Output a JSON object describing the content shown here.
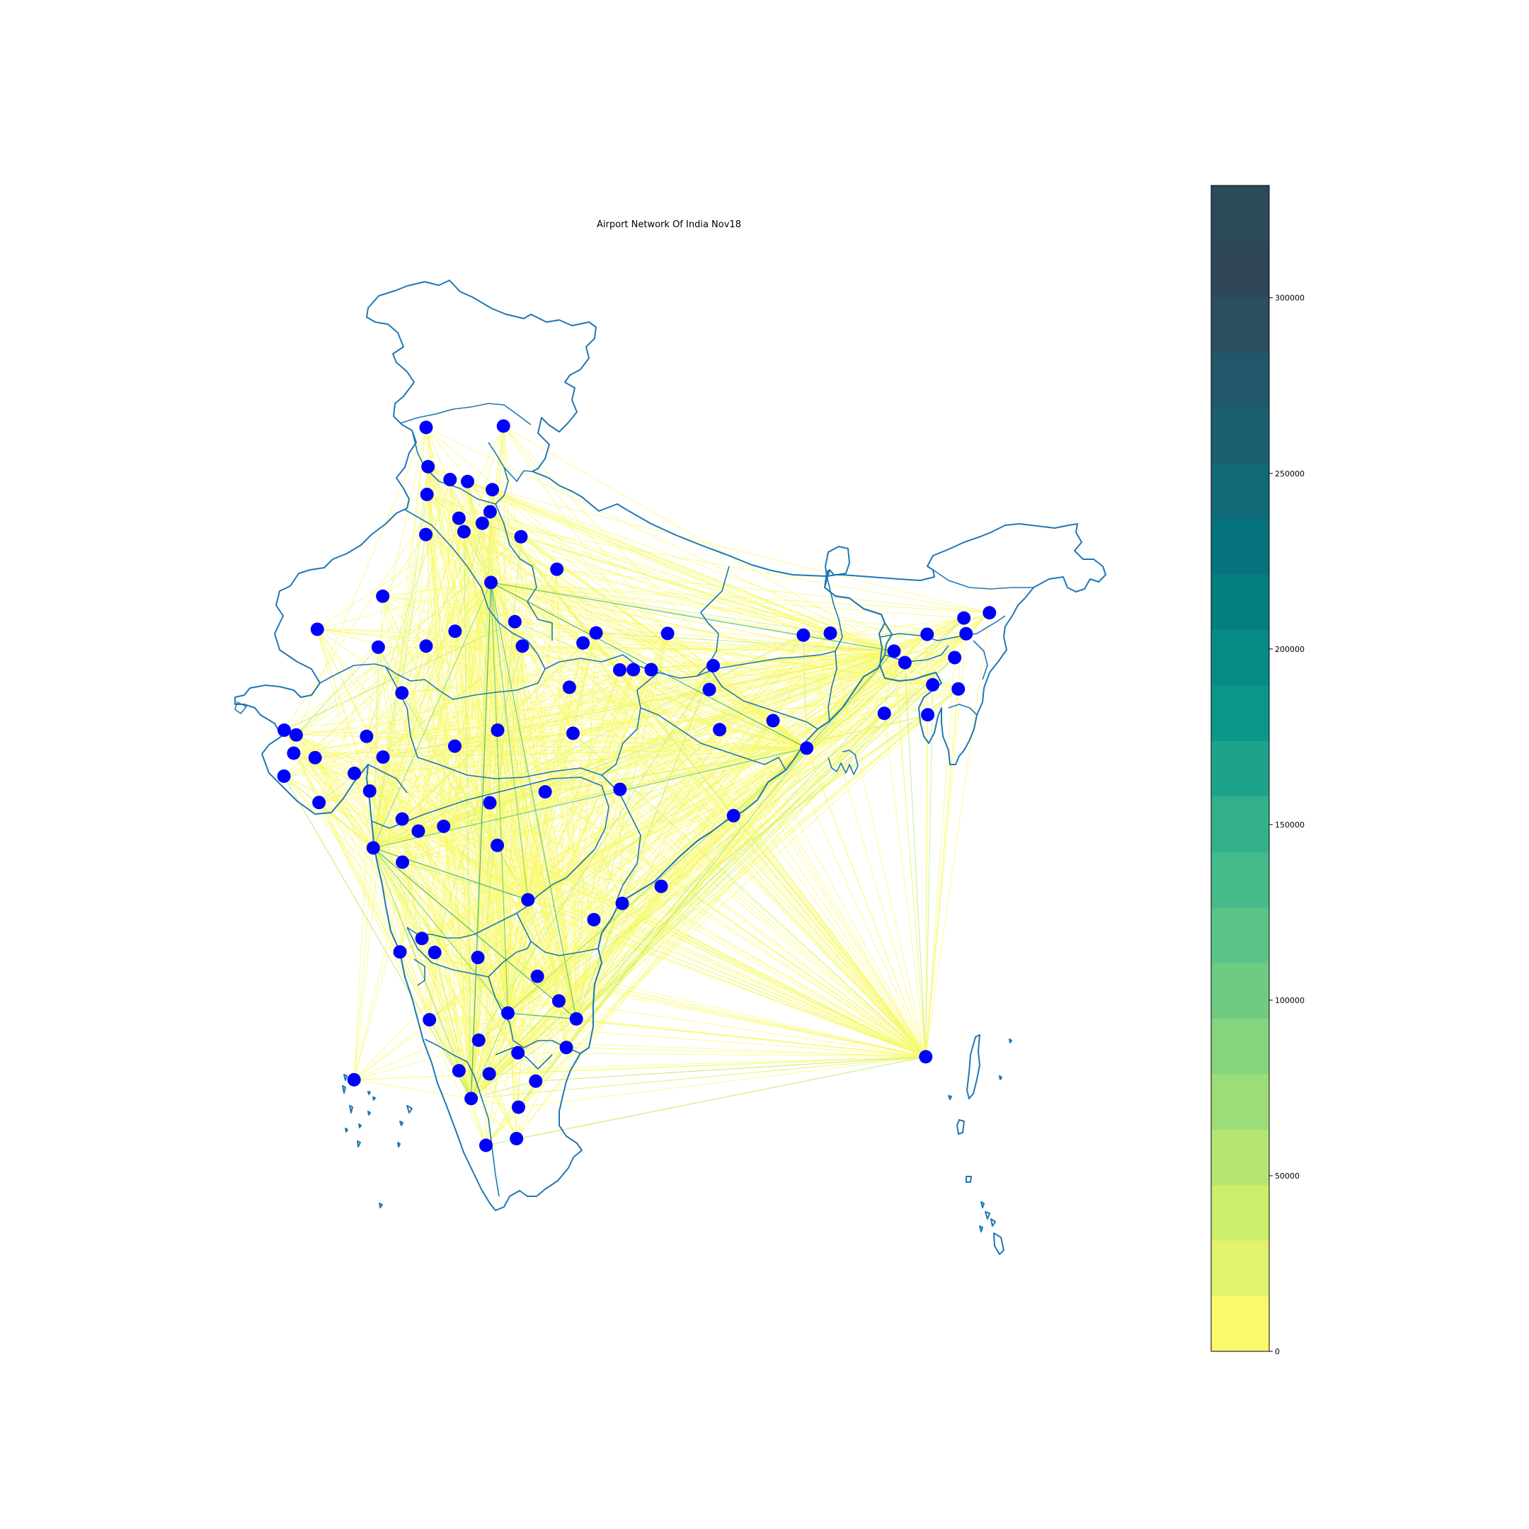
{
  "title": "Airport Network Of India Nov18",
  "chart_data": {
    "type": "network-map",
    "title": "Airport Network Of India Nov18",
    "node_color": "#0000ff",
    "outline_color": "#1f77b4",
    "colormap": "summer_r (yellow to dark teal)",
    "colorbar": {
      "min": 0,
      "max": 332000,
      "ticks": [
        0,
        50000,
        100000,
        150000,
        200000,
        250000,
        300000
      ],
      "tick_labels": [
        "0",
        "50000",
        "100000",
        "150000",
        "200000",
        "250000",
        "300000"
      ],
      "bands": [
        "#f8fa6b",
        "#e2f36b",
        "#cbee6b",
        "#b4e572",
        "#9ddd78",
        "#86d47d",
        "#6fcb82",
        "#5ac388",
        "#45ba8a",
        "#32b08b",
        "#1ea38b",
        "#0b968a",
        "#058a86",
        "#037f80",
        "#06727d",
        "#0f6976",
        "#1a6070",
        "#22576a",
        "#2b4e60",
        "#2e4658",
        "#2d4a5b"
      ]
    },
    "hubs": [
      {
        "id": "DEL",
        "lon": 77.1,
        "lat": 28.56
      },
      {
        "id": "BOM",
        "lon": 72.87,
        "lat": 19.09
      },
      {
        "id": "BLR",
        "lon": 77.71,
        "lat": 13.2
      },
      {
        "id": "MAA",
        "lon": 80.17,
        "lat": 12.99
      },
      {
        "id": "CCU",
        "lon": 88.45,
        "lat": 22.65
      },
      {
        "id": "HYD",
        "lon": 78.43,
        "lat": 17.24
      },
      {
        "id": "IXZ",
        "lon": 92.73,
        "lat": 11.64
      },
      {
        "id": "GAU",
        "lon": 91.59,
        "lat": 26.11
      },
      {
        "id": "COK",
        "lon": 76.39,
        "lat": 10.15
      }
    ],
    "airports": [
      {
        "id": "SXR",
        "lon": 74.77,
        "lat": 34.09
      },
      {
        "id": "IXL",
        "lon": 77.55,
        "lat": 34.14
      },
      {
        "id": "IXJ",
        "lon": 74.84,
        "lat": 32.69
      },
      {
        "id": "ATQ",
        "lon": 74.8,
        "lat": 31.7
      },
      {
        "id": "IXP",
        "lon": 75.63,
        "lat": 32.23
      },
      {
        "id": "DHM",
        "lon": 76.26,
        "lat": 32.16
      },
      {
        "id": "KUU",
        "lon": 77.15,
        "lat": 31.87
      },
      {
        "id": "LUH",
        "lon": 75.95,
        "lat": 30.85
      },
      {
        "id": "IXC",
        "lon": 76.79,
        "lat": 30.67
      },
      {
        "id": "SLV",
        "lon": 77.07,
        "lat": 31.08
      },
      {
        "id": "BUP",
        "lon": 74.76,
        "lat": 30.27
      },
      {
        "id": "PGH",
        "lon": 76.13,
        "lat": 30.37
      },
      {
        "id": "DED",
        "lon": 78.18,
        "lat": 30.19
      },
      {
        "id": "NNS",
        "lon": 79.47,
        "lat": 29.03
      },
      {
        "id": "BKB",
        "lon": 73.21,
        "lat": 28.07
      },
      {
        "id": "JSA",
        "lon": 70.86,
        "lat": 26.89
      },
      {
        "id": "JDH",
        "lon": 73.05,
        "lat": 26.25
      },
      {
        "id": "JAI",
        "lon": 75.81,
        "lat": 26.82
      },
      {
        "id": "KQH",
        "lon": 74.77,
        "lat": 26.29
      },
      {
        "id": "AGR",
        "lon": 77.96,
        "lat": 27.16
      },
      {
        "id": "GWL",
        "lon": 78.23,
        "lat": 26.29
      },
      {
        "id": "UDR",
        "lon": 73.9,
        "lat": 24.62
      },
      {
        "id": "LKO",
        "lon": 80.88,
        "lat": 26.76
      },
      {
        "id": "KNU",
        "lon": 80.41,
        "lat": 26.4
      },
      {
        "id": "GOP",
        "lon": 83.45,
        "lat": 26.74
      },
      {
        "id": "KJH",
        "lon": 82.22,
        "lat": 25.45
      },
      {
        "id": "VNS",
        "lon": 82.86,
        "lat": 25.45
      },
      {
        "id": "IXD",
        "lon": 81.73,
        "lat": 25.44
      },
      {
        "id": "PAT",
        "lon": 85.09,
        "lat": 25.59
      },
      {
        "id": "GAY",
        "lon": 84.95,
        "lat": 24.74
      },
      {
        "id": "HJR",
        "lon": 79.92,
        "lat": 24.82
      },
      {
        "id": "IXB",
        "lon": 88.33,
        "lat": 26.68
      },
      {
        "id": "BHO",
        "lon": 77.34,
        "lat": 23.29
      },
      {
        "id": "JLR",
        "lon": 80.05,
        "lat": 23.18
      },
      {
        "id": "IDR",
        "lon": 75.8,
        "lat": 22.72
      },
      {
        "id": "IXR",
        "lon": 85.32,
        "lat": 23.31
      },
      {
        "id": "DGH",
        "lon": 87.24,
        "lat": 23.63
      },
      {
        "id": "AMD",
        "lon": 72.63,
        "lat": 23.07
      },
      {
        "id": "BDQ",
        "lon": 73.22,
        "lat": 22.33
      },
      {
        "id": "BHJ",
        "lon": 69.67,
        "lat": 23.29
      },
      {
        "id": "KTW",
        "lon": 70.1,
        "lat": 23.12
      },
      {
        "id": "JGA",
        "lon": 70.01,
        "lat": 22.47
      },
      {
        "id": "RAJ",
        "lon": 70.78,
        "lat": 22.31
      },
      {
        "id": "PBD",
        "lon": 69.66,
        "lat": 21.65
      },
      {
        "id": "BHU",
        "lon": 72.19,
        "lat": 21.75
      },
      {
        "id": "DIU",
        "lon": 70.92,
        "lat": 20.71
      },
      {
        "id": "STV",
        "lon": 72.74,
        "lat": 21.12
      },
      {
        "id": "NAG",
        "lon": 79.05,
        "lat": 21.09
      },
      {
        "id": "RPR",
        "lon": 81.74,
        "lat": 21.18
      },
      {
        "id": "BBI",
        "lon": 85.82,
        "lat": 20.24
      },
      {
        "id": "NDC",
        "lon": 77.33,
        "lat": 19.18
      },
      {
        "id": "AKD",
        "lon": 77.06,
        "lat": 20.7
      },
      {
        "id": "IXU",
        "lon": 75.4,
        "lat": 19.86
      },
      {
        "id": "ISK",
        "lon": 73.91,
        "lat": 20.12
      },
      {
        "id": "SAG",
        "lon": 74.49,
        "lat": 19.69
      },
      {
        "id": "PNQ",
        "lon": 73.92,
        "lat": 18.58
      },
      {
        "id": "VTZ",
        "lon": 83.22,
        "lat": 17.72
      },
      {
        "id": "RJA",
        "lon": 81.82,
        "lat": 17.11
      },
      {
        "id": "VGA",
        "lon": 80.8,
        "lat": 16.53
      },
      {
        "id": "GOI",
        "lon": 73.83,
        "lat": 15.38
      },
      {
        "id": "IXG",
        "lon": 74.62,
        "lat": 15.86
      },
      {
        "id": "HBX",
        "lon": 75.08,
        "lat": 15.36
      },
      {
        "id": "VDY",
        "lon": 76.63,
        "lat": 15.18
      },
      {
        "id": "CDP",
        "lon": 78.77,
        "lat": 14.51
      },
      {
        "id": "TIR",
        "lon": 79.54,
        "lat": 13.63
      },
      {
        "id": "IXE",
        "lon": 74.89,
        "lat": 12.96
      },
      {
        "id": "MYQ",
        "lon": 76.66,
        "lat": 12.23
      },
      {
        "id": "CCJ",
        "lon": 75.95,
        "lat": 11.14
      },
      {
        "id": "CJB",
        "lon": 77.04,
        "lat": 11.03
      },
      {
        "id": "SXV",
        "lon": 78.07,
        "lat": 11.78
      },
      {
        "id": "PNY",
        "lon": 79.81,
        "lat": 11.97
      },
      {
        "id": "TRZ",
        "lon": 78.71,
        "lat": 10.77
      },
      {
        "id": "IXM",
        "lon": 78.09,
        "lat": 9.84
      },
      {
        "id": "TCR",
        "lon": 78.02,
        "lat": 8.72
      },
      {
        "id": "TRV",
        "lon": 76.92,
        "lat": 8.48
      },
      {
        "id": "AGX",
        "lon": 72.18,
        "lat": 10.82
      },
      {
        "id": "BAG",
        "lon": 89.3,
        "lat": 26.75
      },
      {
        "id": "IXA",
        "lon": 91.24,
        "lat": 23.89
      },
      {
        "id": "SHL",
        "lon": 91.98,
        "lat": 25.7
      },
      {
        "id": "IXS",
        "lon": 92.98,
        "lat": 24.91
      },
      {
        "id": "IMF",
        "lon": 93.9,
        "lat": 24.76
      },
      {
        "id": "AJL",
        "lon": 92.8,
        "lat": 23.84
      },
      {
        "id": "DMU",
        "lon": 93.77,
        "lat": 25.88
      },
      {
        "id": "JRH",
        "lon": 94.18,
        "lat": 26.73
      },
      {
        "id": "DIB",
        "lon": 95.02,
        "lat": 27.48
      },
      {
        "id": "IXI",
        "lon": 94.1,
        "lat": 27.29
      },
      {
        "id": "TEZ",
        "lon": 92.78,
        "lat": 26.71
      }
    ]
  }
}
